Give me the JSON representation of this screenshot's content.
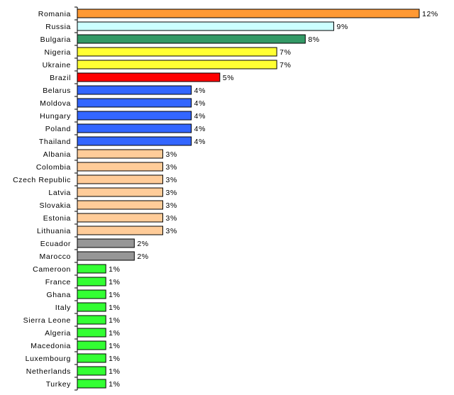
{
  "chart_data": {
    "type": "bar",
    "orientation": "horizontal",
    "categories": [
      "Romania",
      "Russia",
      "Bulgaria",
      "Nigeria",
      "Ukraine",
      "Brazil",
      "Belarus",
      "Moldova",
      "Hungary",
      "Poland",
      "Thailand",
      "Albania",
      "Colombia",
      "Czech Republic",
      "Latvia",
      "Slovakia",
      "Estonia",
      "Lithuania",
      "Ecuador",
      "Marocco",
      "Cameroon",
      "France",
      "Ghana",
      "Italy",
      "Sierra Leone",
      "Algeria",
      "Macedonia",
      "Luxembourg",
      "Netherlands",
      "Turkey"
    ],
    "values": [
      12,
      9,
      8,
      7,
      7,
      5,
      4,
      4,
      4,
      4,
      4,
      3,
      3,
      3,
      3,
      3,
      3,
      3,
      2,
      2,
      1,
      1,
      1,
      1,
      1,
      1,
      1,
      1,
      1,
      1
    ],
    "value_labels": [
      "12%",
      "9%",
      "8%",
      "7%",
      "7%",
      "5%",
      "4%",
      "4%",
      "4%",
      "4%",
      "4%",
      "3%",
      "3%",
      "3%",
      "3%",
      "3%",
      "3%",
      "3%",
      "2%",
      "2%",
      "1%",
      "1%",
      "1%",
      "1%",
      "1%",
      "1%",
      "1%",
      "1%",
      "1%",
      "1%"
    ],
    "bar_colors": [
      "#ff9933",
      "#ccffff",
      "#339966",
      "#ffff33",
      "#ffff33",
      "#ff0000",
      "#3366ff",
      "#3366ff",
      "#3366ff",
      "#3366ff",
      "#3366ff",
      "#ffcc99",
      "#ffcc99",
      "#ffcc99",
      "#ffcc99",
      "#ffcc99",
      "#ffcc99",
      "#ffcc99",
      "#969696",
      "#969696",
      "#33ff33",
      "#33ff33",
      "#33ff33",
      "#33ff33",
      "#33ff33",
      "#33ff33",
      "#33ff33",
      "#33ff33",
      "#33ff33",
      "#33ff33"
    ],
    "xlim": [
      0,
      12
    ],
    "grid": false,
    "legend": "none"
  }
}
